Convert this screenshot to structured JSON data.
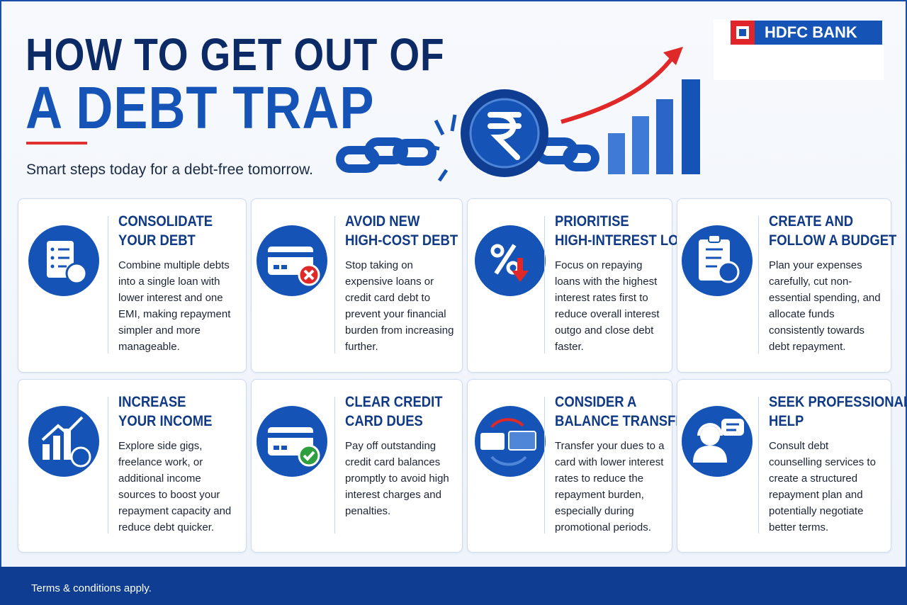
{
  "header": {
    "title_lines": [
      "HOW TO GET OUT OF",
      "A DEBT TRAP"
    ],
    "subtitle": "Smart steps today for a debt-free tomorrow.",
    "logo": "HDFC BANK"
  },
  "cards": [
    {
      "title_lines": [
        "CONSOLIDATE",
        "YOUR DEBT"
      ],
      "text": "Combine multiple debts into a single loan with lower interest and one EMI, making repayment simpler and more manageable."
    },
    {
      "title_lines": [
        "AVOID NEW",
        "HIGH-COST DEBT"
      ],
      "text": "Stop taking on expensive loans or credit card debt to prevent your financial burden from increasing further."
    },
    {
      "title_lines": [
        "PRIORITISE",
        "HIGH-INTEREST LOANS"
      ],
      "text": "Focus on repaying loans with the highest interest rates first to reduce overall interest outgo and close debt faster."
    },
    {
      "title_lines": [
        "CREATE AND",
        "FOLLOW A BUDGET"
      ],
      "text": "Plan your expenses carefully, cut non-essential spending, and allocate funds consistently towards debt repayment."
    },
    {
      "title_lines": [
        "INCREASE",
        "YOUR INCOME"
      ],
      "text": "Explore side gigs, freelance work, or additional income sources to boost your repayment capacity and reduce debt quicker."
    },
    {
      "title_lines": [
        "CLEAR CREDIT",
        "CARD DUES"
      ],
      "text": "Pay off outstanding credit card balances promptly to avoid high interest charges and penalties."
    },
    {
      "title_lines": [
        "CONSIDER A",
        "BALANCE TRANSFER"
      ],
      "text": "Transfer your dues to a card with lower interest rates to reduce the repayment burden, especially during promotional periods."
    },
    {
      "title_lines": [
        "SEEK PROFESSIONAL",
        "HELP"
      ],
      "text": "Consult debt counselling services to create a structured repayment plan and potentially negotiate better terms."
    }
  ],
  "footer": {
    "note": "Terms & conditions apply."
  }
}
